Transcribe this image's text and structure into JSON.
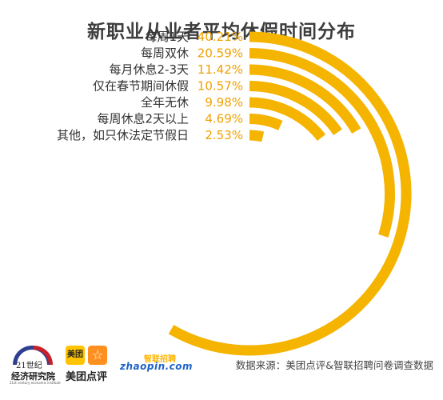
{
  "chart_data": {
    "type": "radial-bar",
    "title": "新职业从业者平均休假时间分布",
    "categories": [
      "每周1天",
      "每周双休",
      "每月休息2-3天",
      "仅在春节期间休假",
      "全年无休",
      "每周休息2天以上",
      "其他，如只休法定节假日"
    ],
    "values": [
      40.21,
      20.59,
      11.42,
      10.57,
      9.98,
      4.69,
      2.53
    ],
    "value_labels": [
      "40.21%",
      "20.59%",
      "11.42%",
      "10.57%",
      "9.98%",
      "4.69%",
      "2.53%"
    ],
    "unit": "%",
    "color": "#f5b400"
  },
  "source": "数据来源：美团点评&智联招聘问卷调查数据",
  "logos": {
    "institute": {
      "line1": "21世纪",
      "line2": "经济研究院",
      "line3": "21st century economic institute"
    },
    "meituan": {
      "badge1": "美团",
      "badge2": "☆",
      "name": "美团点评"
    },
    "zhaopin": {
      "top": "智联招聘",
      "bottom": "zhaopin.com"
    }
  },
  "colors": {
    "bar": "#f5b400",
    "value_text": "#f0a000",
    "title": "#3d3d3d"
  }
}
